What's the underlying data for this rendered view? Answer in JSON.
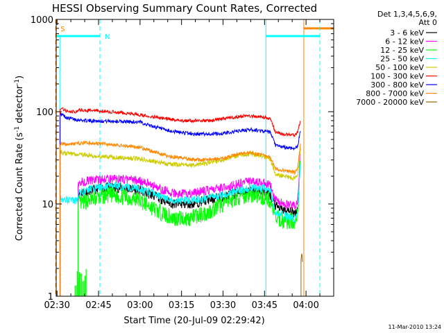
{
  "chart_data": {
    "type": "line",
    "title": "HESSI Observing Summary Count Rates, Corrected",
    "xlabel": "Start Time (20-Jul-09 02:29:42)",
    "ylabel_main": "Corrected Count Rate (s",
    "ylabel_sup1": "-1",
    "ylabel_mid": " detector",
    "ylabel_sup2": "-1",
    "ylabel_end": ")",
    "timestamp": "11-Mar-2010 13:24",
    "y_scale": "log",
    "ylim": [
      1,
      1000
    ],
    "y_ticks": [
      {
        "value": 1,
        "label": "1"
      },
      {
        "value": 10,
        "label": "10"
      },
      {
        "value": 100,
        "label": "100"
      },
      {
        "value": 1000,
        "label": "1000"
      }
    ],
    "x_unit": "minutes since 02:30",
    "xlim": [
      -0.3,
      100
    ],
    "x_ticks": [
      {
        "value": 0,
        "label": "02:30"
      },
      {
        "value": 15,
        "label": "02:45"
      },
      {
        "value": 30,
        "label": "03:00"
      },
      {
        "value": 45,
        "label": "03:15"
      },
      {
        "value": 60,
        "label": "03:30"
      },
      {
        "value": 75,
        "label": "03:45"
      },
      {
        "value": 90,
        "label": "04:00"
      }
    ],
    "legend_header1": "Det 1,3,4,5,6,9,",
    "legend_header2": "Att 0",
    "legend_position": "right, outside plot",
    "series": [
      {
        "name": "3 - 6 keV",
        "color": "#000000",
        "seed": 11,
        "noise": 0.055,
        "points": [
          [
            7.5,
            null
          ],
          [
            7.6,
            13
          ],
          [
            12,
            14
          ],
          [
            18,
            15
          ],
          [
            24,
            15
          ],
          [
            30,
            14
          ],
          [
            36,
            12
          ],
          [
            42,
            10
          ],
          [
            48,
            10
          ],
          [
            54,
            11
          ],
          [
            60,
            12
          ],
          [
            66,
            13.5
          ],
          [
            70,
            14
          ],
          [
            74,
            13.5
          ],
          [
            77,
            12.5
          ],
          [
            79,
            9.5
          ],
          [
            82,
            8.5
          ],
          [
            86,
            8
          ],
          [
            87,
            9
          ],
          [
            88,
            30
          ]
        ]
      },
      {
        "name": "6 - 12 keV",
        "color": "#ff00ff",
        "seed": 12,
        "noise": 0.05,
        "points": [
          [
            7.5,
            null
          ],
          [
            7.6,
            17
          ],
          [
            12,
            18
          ],
          [
            18,
            18.5
          ],
          [
            24,
            18.5
          ],
          [
            30,
            18
          ],
          [
            36,
            15
          ],
          [
            42,
            13
          ],
          [
            48,
            13
          ],
          [
            54,
            14
          ],
          [
            60,
            15
          ],
          [
            66,
            16.5
          ],
          [
            70,
            17.5
          ],
          [
            74,
            17
          ],
          [
            77,
            16
          ],
          [
            79,
            11
          ],
          [
            82,
            10
          ],
          [
            86,
            9.5
          ],
          [
            87,
            11
          ],
          [
            88,
            40
          ]
        ]
      },
      {
        "name": "12 - 25 keV",
        "color": "#00ff00",
        "seed": 13,
        "noise": 0.09,
        "points": [
          [
            7.5,
            null
          ],
          [
            7.6,
            10
          ],
          [
            12,
            11
          ],
          [
            18,
            12.5
          ],
          [
            24,
            12
          ],
          [
            30,
            11
          ],
          [
            36,
            8.5
          ],
          [
            42,
            7
          ],
          [
            48,
            7
          ],
          [
            54,
            8
          ],
          [
            60,
            10
          ],
          [
            66,
            12
          ],
          [
            70,
            12.5
          ],
          [
            74,
            12
          ],
          [
            77,
            11
          ],
          [
            79,
            7
          ],
          [
            82,
            6.5
          ],
          [
            86,
            6.5
          ],
          [
            87,
            8
          ],
          [
            88,
            30
          ]
        ]
      },
      {
        "name": "25 - 50 keV",
        "color": "#00ffff",
        "seed": 14,
        "noise": 0.045,
        "points": [
          [
            1,
            null
          ],
          [
            1.1,
            11.5
          ],
          [
            4,
            11
          ],
          [
            7.5,
            11
          ],
          [
            7.6,
            13
          ],
          [
            12,
            14.5
          ],
          [
            18,
            15.5
          ],
          [
            24,
            15.5
          ],
          [
            30,
            14.5
          ],
          [
            36,
            12.5
          ],
          [
            42,
            11
          ],
          [
            48,
            11
          ],
          [
            54,
            11.5
          ],
          [
            60,
            12.5
          ],
          [
            66,
            14
          ],
          [
            70,
            15
          ],
          [
            74,
            15
          ],
          [
            77,
            14.5
          ],
          [
            79,
            8
          ],
          [
            82,
            7.5
          ],
          [
            86,
            7
          ],
          [
            87,
            8
          ],
          [
            88,
            30
          ]
        ]
      },
      {
        "name": "50 - 100 keV",
        "color": "#cccc00",
        "seed": 15,
        "noise": 0.025,
        "points": [
          [
            1,
            null
          ],
          [
            1.1,
            36
          ],
          [
            5,
            35
          ],
          [
            10,
            34
          ],
          [
            15,
            33
          ],
          [
            20,
            32
          ],
          [
            30,
            31
          ],
          [
            40,
            27
          ],
          [
            50,
            26.5
          ],
          [
            60,
            30
          ],
          [
            66,
            34
          ],
          [
            70,
            35
          ],
          [
            74,
            33
          ],
          [
            77,
            31
          ],
          [
            79,
            21
          ],
          [
            82,
            20
          ],
          [
            86,
            19
          ],
          [
            87,
            20
          ],
          [
            88,
            40
          ]
        ]
      },
      {
        "name": "100 - 300 keV",
        "color": "#ff0000",
        "seed": 16,
        "noise": 0.018,
        "points": [
          [
            1,
            null
          ],
          [
            1.1,
            110
          ],
          [
            4,
            100
          ],
          [
            7.5,
            100
          ],
          [
            8,
            105
          ],
          [
            15,
            102
          ],
          [
            25,
            97
          ],
          [
            35,
            88
          ],
          [
            45,
            80
          ],
          [
            55,
            80
          ],
          [
            62,
            85
          ],
          [
            68,
            90
          ],
          [
            74,
            88
          ],
          [
            77,
            84
          ],
          [
            79,
            60
          ],
          [
            82,
            57
          ],
          [
            86,
            56
          ],
          [
            87,
            60
          ],
          [
            88,
            80
          ]
        ]
      },
      {
        "name": "300 - 800 keV",
        "color": "#0000ff",
        "seed": 17,
        "noise": 0.02,
        "points": [
          [
            1,
            null
          ],
          [
            1.1,
            95
          ],
          [
            4,
            85
          ],
          [
            10,
            80
          ],
          [
            20,
            79
          ],
          [
            30,
            77
          ],
          [
            40,
            62
          ],
          [
            50,
            57
          ],
          [
            60,
            58
          ],
          [
            66,
            62
          ],
          [
            70,
            64
          ],
          [
            74,
            62
          ],
          [
            77,
            60
          ],
          [
            79,
            43
          ],
          [
            82,
            41
          ],
          [
            86,
            40
          ],
          [
            87,
            42
          ],
          [
            88,
            65
          ]
        ]
      },
      {
        "name": "800 - 7000 keV",
        "color": "#ff8800",
        "seed": 18,
        "noise": 0.02,
        "points": [
          [
            1,
            null
          ],
          [
            1.1,
            45
          ],
          [
            4,
            44
          ],
          [
            10,
            46
          ],
          [
            20,
            44
          ],
          [
            30,
            41
          ],
          [
            40,
            33
          ],
          [
            50,
            30
          ],
          [
            60,
            31
          ],
          [
            66,
            35
          ],
          [
            70,
            36
          ],
          [
            74,
            34
          ],
          [
            77,
            32
          ],
          [
            79,
            24
          ],
          [
            82,
            23
          ],
          [
            86,
            22
          ],
          [
            87,
            24
          ],
          [
            88,
            45
          ]
        ]
      },
      {
        "name": "7000 - 20000 keV",
        "color": "#996600",
        "seed": 19,
        "noise": 0,
        "points": [
          [
            88,
            null
          ],
          [
            88.2,
            2.5
          ],
          [
            88.5,
            3
          ],
          [
            88.8,
            2
          ]
        ]
      }
    ],
    "flags": {
      "saa": {
        "label": "S",
        "color": "#ff8800",
        "start": -5,
        "end": -0.5,
        "value": 800,
        "vline_dashed": -0.5,
        "vline_solid": 89.2
      },
      "night": {
        "label": "N",
        "color": "#00ffff",
        "start": -5,
        "end": 15.5,
        "value": 660,
        "start2": 75.5,
        "end2": 95,
        "vline_dashed": 15.5,
        "vline_solid": 75.5
      }
    },
    "green_spikes_x": [
      6.5,
      6.9,
      7.3,
      7.7,
      8.1,
      8.5,
      8.9,
      9.3,
      9.7,
      10.1,
      10.5
    ]
  }
}
